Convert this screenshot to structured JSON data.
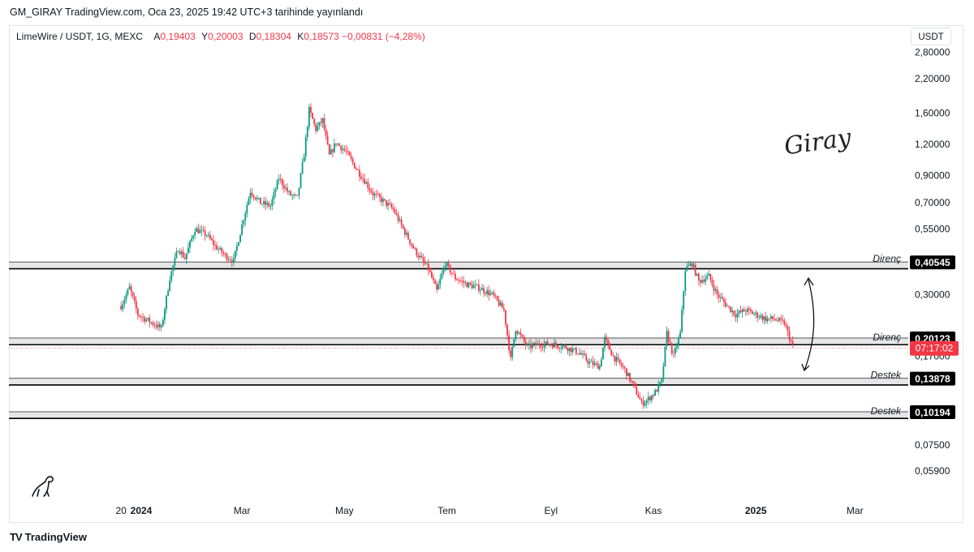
{
  "header": {
    "publish_info": "GM_GIRAY TradingView.com, Oca 23, 2025 19:42 UTC+3 tarihinde yayınlandı"
  },
  "legend": {
    "symbol": "LimeWire / USDT, 1G, MEXC",
    "open_label": "A",
    "open": "0,19403",
    "high_label": "Y",
    "high": "0,20003",
    "low_label": "D",
    "low": "0,18304",
    "close_label": "K",
    "close": "0,18573",
    "change": "−0,00831 (−4,28%)"
  },
  "currency": "USDT",
  "signature_text": "Giray",
  "footer": {
    "brand": "TradingView",
    "logo": "TV"
  },
  "colors": {
    "up": "#089981",
    "down": "#f23645",
    "zone_fill": "#e6e6e6",
    "zone_border": "#555555",
    "label_bg": "#000000",
    "countdown_bg": "#f23645"
  },
  "chart_data": {
    "type": "candlestick",
    "title": "",
    "y_scale": "log",
    "y_ticks": [
      "2,80000",
      "2,20000",
      "1,60000",
      "1,20000",
      "0,90000",
      "0,70000",
      "0,55000",
      "0,30000",
      "0,17000",
      "0,07500",
      "0,05900"
    ],
    "y_tick_values": [
      2.8,
      2.2,
      1.6,
      1.2,
      0.9,
      0.7,
      0.55,
      0.3,
      0.17,
      0.075,
      0.059
    ],
    "x_ticks": [
      "20",
      "2024",
      "Mar",
      "May",
      "Tem",
      "Eyl",
      "Kas",
      "2025",
      "Mar"
    ],
    "x_tick_bold": [
      false,
      true,
      false,
      false,
      false,
      false,
      false,
      true,
      false
    ],
    "x_tick_dates": [
      "2023-12-20",
      "2024-01-01",
      "2024-03-01",
      "2024-05-01",
      "2024-07-01",
      "2024-09-01",
      "2024-11-01",
      "2025-01-01",
      "2025-03-01"
    ],
    "price_path": [
      [
        "2023-12-20",
        0.27
      ],
      [
        "2023-12-25",
        0.32
      ],
      [
        "2023-12-30",
        0.25
      ],
      [
        "2024-01-08",
        0.23
      ],
      [
        "2024-01-13",
        0.22
      ],
      [
        "2024-01-18",
        0.35
      ],
      [
        "2024-01-23",
        0.46
      ],
      [
        "2024-01-27",
        0.42
      ],
      [
        "2024-02-02",
        0.55
      ],
      [
        "2024-02-09",
        0.52
      ],
      [
        "2024-02-14",
        0.47
      ],
      [
        "2024-02-20",
        0.43
      ],
      [
        "2024-02-25",
        0.41
      ],
      [
        "2024-03-01",
        0.57
      ],
      [
        "2024-03-06",
        0.78
      ],
      [
        "2024-03-12",
        0.7
      ],
      [
        "2024-03-18",
        0.68
      ],
      [
        "2024-03-23",
        0.88
      ],
      [
        "2024-03-29",
        0.76
      ],
      [
        "2024-04-03",
        0.73
      ],
      [
        "2024-04-07",
        1.1
      ],
      [
        "2024-04-10",
        1.65
      ],
      [
        "2024-04-14",
        1.38
      ],
      [
        "2024-04-18",
        1.5
      ],
      [
        "2024-04-22",
        1.08
      ],
      [
        "2024-04-26",
        1.22
      ],
      [
        "2024-05-02",
        1.12
      ],
      [
        "2024-05-08",
        0.96
      ],
      [
        "2024-05-13",
        0.86
      ],
      [
        "2024-05-18",
        0.76
      ],
      [
        "2024-05-23",
        0.72
      ],
      [
        "2024-05-30",
        0.66
      ],
      [
        "2024-06-05",
        0.55
      ],
      [
        "2024-06-12",
        0.45
      ],
      [
        "2024-06-20",
        0.38
      ],
      [
        "2024-06-25",
        0.31
      ],
      [
        "2024-06-30",
        0.4
      ],
      [
        "2024-07-06",
        0.35
      ],
      [
        "2024-07-13",
        0.33
      ],
      [
        "2024-07-20",
        0.32
      ],
      [
        "2024-07-28",
        0.3
      ],
      [
        "2024-08-04",
        0.26
      ],
      [
        "2024-08-08",
        0.165
      ],
      [
        "2024-08-11",
        0.22
      ],
      [
        "2024-08-18",
        0.185
      ],
      [
        "2024-08-25",
        0.19
      ],
      [
        "2024-09-02",
        0.19
      ],
      [
        "2024-09-10",
        0.185
      ],
      [
        "2024-09-18",
        0.175
      ],
      [
        "2024-09-24",
        0.16
      ],
      [
        "2024-09-30",
        0.155
      ],
      [
        "2024-10-03",
        0.2
      ],
      [
        "2024-10-08",
        0.17
      ],
      [
        "2024-10-15",
        0.15
      ],
      [
        "2024-10-20",
        0.13
      ],
      [
        "2024-10-25",
        0.11
      ],
      [
        "2024-10-28",
        0.113
      ],
      [
        "2024-11-02",
        0.122
      ],
      [
        "2024-11-06",
        0.135
      ],
      [
        "2024-11-09",
        0.21
      ],
      [
        "2024-11-13",
        0.17
      ],
      [
        "2024-11-17",
        0.21
      ],
      [
        "2024-11-20",
        0.38
      ],
      [
        "2024-11-24",
        0.4
      ],
      [
        "2024-11-28",
        0.34
      ],
      [
        "2024-12-04",
        0.355
      ],
      [
        "2024-12-09",
        0.3
      ],
      [
        "2024-12-15",
        0.27
      ],
      [
        "2024-12-20",
        0.25
      ],
      [
        "2024-12-26",
        0.26
      ],
      [
        "2025-01-01",
        0.25
      ],
      [
        "2025-01-07",
        0.24
      ],
      [
        "2025-01-12",
        0.24
      ],
      [
        "2025-01-18",
        0.23
      ],
      [
        "2025-01-23",
        0.18573
      ]
    ],
    "levels": [
      {
        "name": "Direnç",
        "price": 0.40545,
        "price_label": "0,40545"
      },
      {
        "name": "Direnç",
        "price": 0.20123,
        "price_label": "0,20123"
      },
      {
        "name": "Destek",
        "price": 0.13878,
        "price_label": "0,13878"
      },
      {
        "name": "Destek",
        "price": 0.10194,
        "price_label": "0,10194"
      }
    ],
    "countdown": "07:17:02"
  }
}
